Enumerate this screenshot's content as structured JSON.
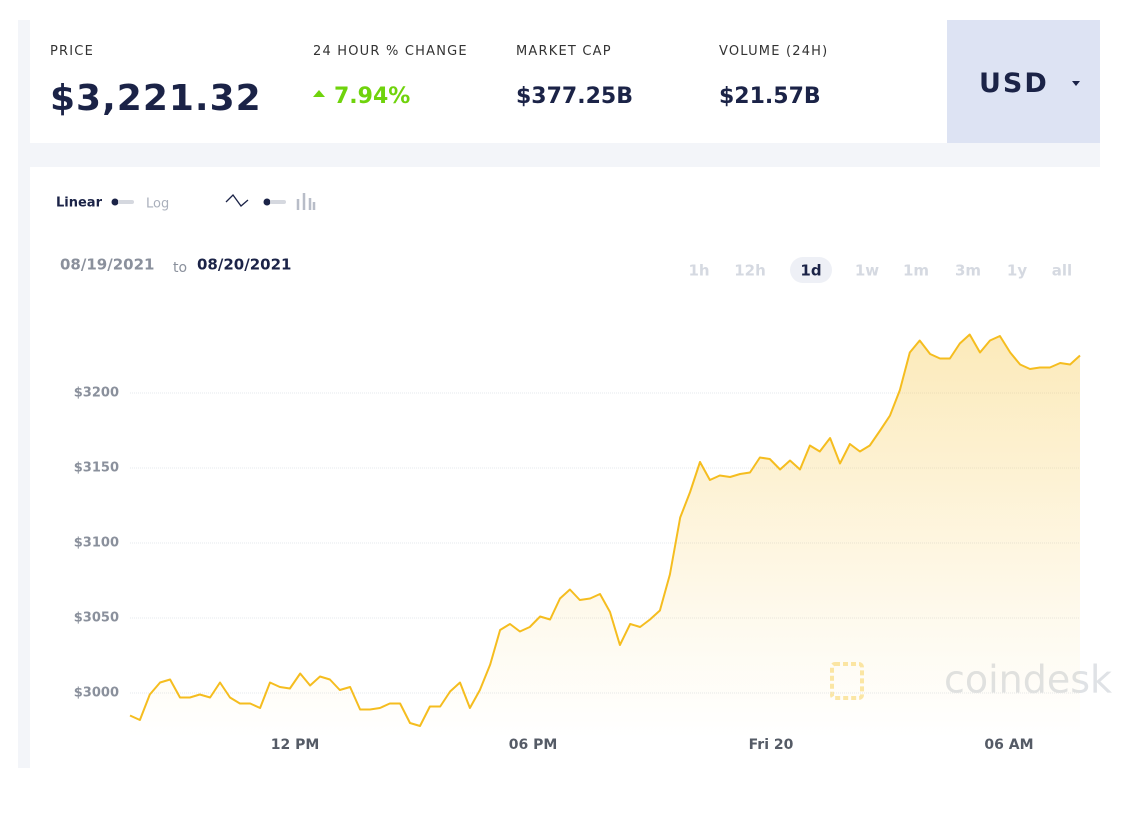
{
  "header": {
    "stats": [
      {
        "label": "PRICE",
        "value": "$3,221.32"
      },
      {
        "label": "24 HOUR % CHANGE",
        "value": "7.94%"
      },
      {
        "label": "MARKET CAP",
        "value": "$377.25B"
      },
      {
        "label": "VOLUME (24H)",
        "value": "$21.57B"
      }
    ],
    "currency": "USD"
  },
  "controls": {
    "scale": [
      "Linear",
      "Log"
    ],
    "date_from": "08/19/2021",
    "date_to_word": "to",
    "date_to": "08/20/2021",
    "ranges": [
      "1h",
      "12h",
      "1d",
      "1w",
      "1m",
      "3m",
      "1y",
      "all"
    ],
    "active_range": "1d"
  },
  "watermark": "coindesk",
  "chart_data": {
    "type": "line",
    "color": "#f5bd1f",
    "area": true,
    "grid": true,
    "x": [
      7.84,
      8.09,
      8.34,
      8.6,
      8.85,
      9.1,
      9.35,
      9.6,
      9.86,
      10.11,
      10.36,
      10.61,
      10.87,
      11.12,
      11.37,
      11.62,
      11.87,
      12.13,
      12.38,
      12.63,
      12.88,
      13.13,
      13.39,
      13.64,
      13.89,
      14.14,
      14.39,
      14.65,
      14.9,
      15.15,
      15.4,
      15.66,
      15.91,
      16.16,
      16.41,
      16.66,
      16.92,
      17.17,
      17.42,
      17.67,
      17.92,
      18.18,
      18.43,
      18.68,
      18.93,
      19.18,
      19.44,
      19.69,
      19.94,
      20.19,
      20.45,
      20.7,
      20.95,
      21.2,
      21.45,
      21.71,
      21.96,
      22.21,
      22.46,
      22.71,
      22.97,
      23.22,
      23.47,
      23.72,
      23.97,
      24.23,
      24.48,
      24.73,
      24.98,
      25.23,
      25.49,
      25.74,
      25.99,
      26.24,
      26.49,
      26.75,
      27.0,
      27.25,
      27.5,
      27.75,
      28.01,
      28.26,
      28.51,
      28.76,
      29.01,
      29.27,
      29.52,
      29.77,
      30.03,
      30.28,
      30.53,
      30.78,
      31.03,
      31.29,
      31.54,
      31.79
    ],
    "values": [
      2985,
      2982,
      2999,
      3007,
      3009,
      2997,
      2997,
      2999,
      2997,
      3007,
      2997,
      2993,
      2993,
      2990,
      3007,
      3004,
      3003,
      3013,
      3005,
      3011,
      3009,
      3002,
      3004,
      2989,
      2989,
      2990,
      2993,
      2993,
      2980,
      2978,
      2991,
      2991,
      3001,
      3007,
      2990,
      3002,
      3019,
      3042,
      3046,
      3041,
      3044,
      3051,
      3049,
      3063,
      3069,
      3062,
      3063,
      3066,
      3054,
      3032,
      3046,
      3044,
      3049,
      3055,
      3079,
      3117,
      3134,
      3154,
      3142,
      3145,
      3144,
      3146,
      3147,
      3157,
      3156,
      3149,
      3155,
      3149,
      3165,
      3161,
      3170,
      3153,
      3166,
      3161,
      3165,
      3175,
      3185,
      3202,
      3227,
      3235,
      3226,
      3223,
      3223,
      3233,
      3239,
      3227,
      3235,
      3238,
      3227,
      3219,
      3216,
      3217,
      3217,
      3220,
      3219,
      3225
    ],
    "xlim": [
      7.84,
      31.79
    ],
    "xticks": [
      {
        "value": 12,
        "label": "12 PM"
      },
      {
        "value": 18,
        "label": "06 PM"
      },
      {
        "value": 24,
        "label": "Fri 20"
      },
      {
        "value": 30,
        "label": "06 AM"
      }
    ],
    "ylim": [
      2970,
      3250
    ],
    "yticks": [
      {
        "value": 3000,
        "label": "$3000"
      },
      {
        "value": 3050,
        "label": "$3050"
      },
      {
        "value": 3100,
        "label": "$3100"
      },
      {
        "value": 3150,
        "label": "$3150"
      },
      {
        "value": 3200,
        "label": "$3200"
      }
    ]
  }
}
